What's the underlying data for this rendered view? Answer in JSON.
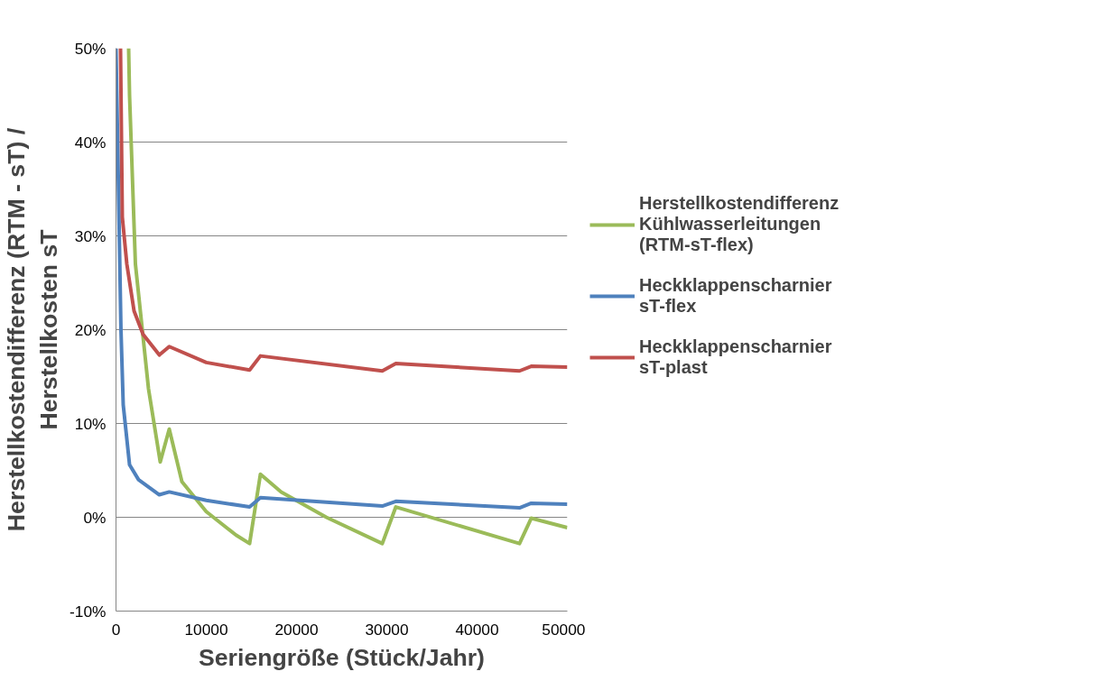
{
  "chart_data": {
    "type": "line",
    "xlabel": "Seriengröße (Stück/Jahr)",
    "ylabel": "Herstellkostendifferenz (RTM - sT) /\nHerstellkosten sT",
    "xlim": [
      0,
      50000
    ],
    "xticks": [
      0,
      10000,
      20000,
      30000,
      40000,
      50000
    ],
    "ylim": [
      -10,
      50
    ],
    "yticks": [
      {
        "value": -10,
        "label": "-10%"
      },
      {
        "value": 0,
        "label": "0%"
      },
      {
        "value": 10,
        "label": "10%"
      },
      {
        "value": 20,
        "label": "20%"
      },
      {
        "value": 30,
        "label": "30%"
      },
      {
        "value": 40,
        "label": "40%"
      },
      {
        "value": 50,
        "label": "50%"
      }
    ],
    "grid": "y",
    "legend": "right",
    "marker": "none",
    "line_style": "solid",
    "series": [
      {
        "name": "Herstellkostendifferenz Kühlwasserleitungen (RTM-sT-flex)",
        "color": "#9bbb59",
        "x": [
          1400,
          1500,
          2150,
          3600,
          4900,
          5900,
          7300,
          10000,
          13300,
          14800,
          16000,
          18300,
          23300,
          29500,
          31000,
          44700,
          46000,
          50000
        ],
        "values": [
          50,
          45,
          27,
          13.7,
          5.9,
          9.4,
          3.8,
          0.6,
          -1.9,
          -2.8,
          4.6,
          2.7,
          0,
          -2.8,
          1.1,
          -2.8,
          -0.1,
          -1.1
        ]
      },
      {
        "name": "Heckklappenscharnier sT-flex",
        "color": "#4f81bd",
        "x": [
          0,
          550,
          800,
          1500,
          2500,
          4800,
          5900,
          10000,
          14800,
          16000,
          29500,
          31000,
          44700,
          46000,
          50000
        ],
        "values": [
          50,
          20,
          12,
          5.6,
          4,
          2.4,
          2.7,
          1.8,
          1.1,
          2.1,
          1.2,
          1.7,
          1.0,
          1.5,
          1.4
        ]
      },
      {
        "name": "Heckklappenscharnier sT-plast",
        "color": "#c0504d",
        "x": [
          500,
          700,
          1200,
          2000,
          3000,
          4800,
          5900,
          10000,
          14800,
          16000,
          29500,
          31000,
          44700,
          46000,
          50000
        ],
        "values": [
          50,
          32,
          27,
          22,
          19.5,
          17.3,
          18.2,
          16.5,
          15.7,
          17.2,
          15.6,
          16.4,
          15.6,
          16.1,
          16.0
        ]
      }
    ]
  }
}
